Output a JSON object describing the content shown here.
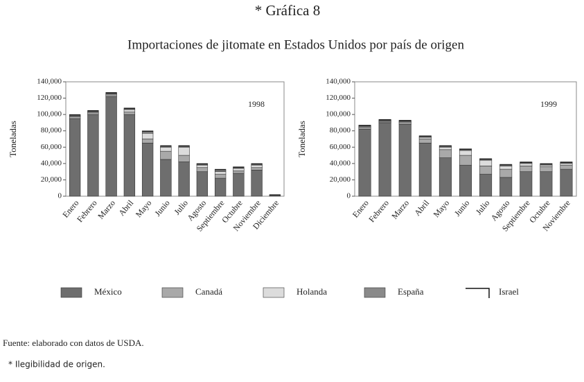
{
  "title": "* Gráfica 8",
  "subtitle": "Importaciones de jitomate en Estados Unidos por país de origen",
  "source": "Fuente: elaborado con datos de USDA.",
  "note": "* Ilegibilidad de origen.",
  "chart_data": [
    {
      "type": "bar",
      "stacked": true,
      "annotation": "1998",
      "y_label": "Toneladas",
      "categories": [
        "Enero",
        "Febrero",
        "Marzo",
        "Abril",
        "Mayo",
        "Junio",
        "Julio",
        "Agosto",
        "Septiembre",
        "Octubre",
        "Noviembre",
        "Diciembre"
      ],
      "ylim": [
        0,
        140000
      ],
      "yticks": [
        {
          "value": 0,
          "label": "0"
        },
        {
          "value": 20000,
          "label": "20,000"
        },
        {
          "value": 40000,
          "label": "40,000"
        },
        {
          "value": 60000,
          "label": "60,000"
        },
        {
          "value": 80000,
          "label": "80,000"
        },
        {
          "value": 100000,
          "label": "100,000"
        },
        {
          "value": 120000,
          "label": "120,000"
        },
        {
          "value": 140000,
          "label": "140,000"
        }
      ],
      "series": [
        {
          "name": "México",
          "color": "#6e6e6e",
          "values": [
            95000,
            100000,
            122000,
            100000,
            65000,
            45000,
            42000,
            30000,
            22000,
            28000,
            32000,
            0
          ]
        },
        {
          "name": "Canadá",
          "color": "#a9a9a9",
          "values": [
            2000,
            2000,
            2000,
            3000,
            5000,
            10000,
            8000,
            5000,
            5000,
            3000,
            3000,
            0
          ]
        },
        {
          "name": "Holanda",
          "color": "#dcdcdc",
          "values": [
            1000,
            1000,
            1000,
            3000,
            7000,
            5000,
            10000,
            3000,
            3000,
            3000,
            3000,
            0
          ]
        },
        {
          "name": "España",
          "color": "#8a8a8a",
          "values": [
            1000,
            1000,
            1000,
            1000,
            2000,
            1000,
            1000,
            1000,
            2000,
            1000,
            1000,
            1000
          ]
        },
        {
          "name": "Israel",
          "color": "#111111",
          "values": [
            1000,
            1000,
            1000,
            1000,
            1000,
            1000,
            1000,
            1000,
            1000,
            1000,
            1000,
            1000
          ]
        }
      ]
    },
    {
      "type": "bar",
      "stacked": true,
      "annotation": "1999",
      "y_label": "Toneladas",
      "categories": [
        "Enero",
        "Febrero",
        "Marzo",
        "Abril",
        "Mayo",
        "Junio",
        "Julio",
        "Agosto",
        "Septiembre",
        "Octubre",
        "Noviembre"
      ],
      "ylim": [
        0,
        140000
      ],
      "yticks": [
        {
          "value": 0,
          "label": "0"
        },
        {
          "value": 20000,
          "label": "20,000"
        },
        {
          "value": 40000,
          "label": "40,000"
        },
        {
          "value": 60000,
          "label": "60,000"
        },
        {
          "value": 80000,
          "label": "80,000"
        },
        {
          "value": 100000,
          "label": "100,000"
        },
        {
          "value": 120000,
          "label": "120,000"
        },
        {
          "value": 140000,
          "label": "140,000"
        }
      ],
      "series": [
        {
          "color": "#6e6e6e",
          "values": [
            82000,
            90000,
            88000,
            65000,
            47000,
            38000,
            27000,
            23000,
            30000,
            30000,
            33000
          ]
        },
        {
          "color": "#a9a9a9",
          "values": [
            2000,
            1000,
            2000,
            5000,
            10000,
            12000,
            10000,
            10000,
            7000,
            6000,
            5000
          ]
        },
        {
          "color": "#dcdcdc",
          "values": [
            1000,
            1000,
            1000,
            2000,
            3000,
            6000,
            7000,
            4000,
            3000,
            2000,
            2000
          ]
        },
        {
          "color": "#8a8a8a",
          "values": [
            1000,
            1000,
            1000,
            1000,
            1000,
            1000,
            1000,
            1000,
            1000,
            1000,
            1000
          ]
        },
        {
          "color": "#111111",
          "values": [
            1000,
            1000,
            1000,
            1000,
            1000,
            1000,
            1000,
            1000,
            1000,
            1000,
            1000
          ]
        }
      ]
    }
  ]
}
